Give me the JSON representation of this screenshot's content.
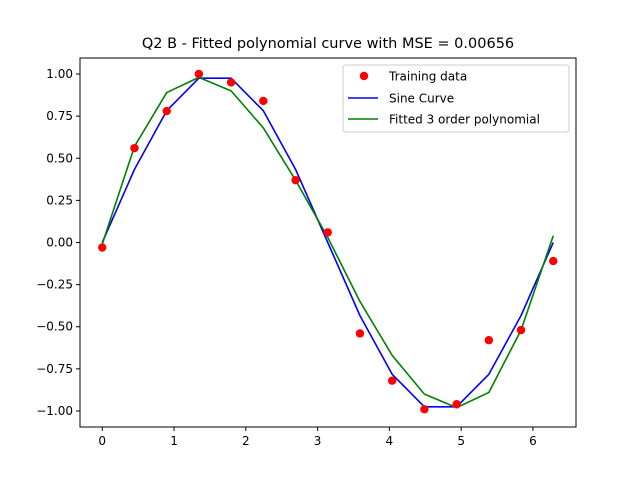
{
  "chart_data": {
    "type": "line",
    "title": "Q2 B - Fitted polynomial curve with MSE = 0.00656",
    "xlabel": "",
    "ylabel": "",
    "xlim": [
      -0.31,
      6.6
    ],
    "ylim": [
      -1.095,
      1.095
    ],
    "xticks": [
      0,
      1,
      2,
      3,
      4,
      5,
      6
    ],
    "xtick_labels": [
      "0",
      "1",
      "2",
      "3",
      "4",
      "5",
      "6"
    ],
    "yticks": [
      -1.0,
      -0.75,
      -0.5,
      -0.25,
      0.0,
      0.25,
      0.5,
      0.75,
      1.0
    ],
    "ytick_labels": [
      "−1.00",
      "−0.75",
      "−0.50",
      "−0.25",
      "0.00",
      "0.25",
      "0.50",
      "0.75",
      "1.00"
    ],
    "grid": false,
    "legend_position": "top-right",
    "x": [
      0.0,
      0.449,
      0.898,
      1.346,
      1.795,
      2.244,
      2.693,
      3.142,
      3.59,
      4.039,
      4.488,
      4.937,
      5.386,
      5.834,
      6.283
    ],
    "series": [
      {
        "name": "Training data",
        "kind": "scatter",
        "color": "#ff0000",
        "values": [
          -0.03,
          0.56,
          0.78,
          1.0,
          0.95,
          0.84,
          0.37,
          0.06,
          -0.54,
          -0.82,
          -0.99,
          -0.96,
          -0.58,
          -0.52,
          -0.11
        ]
      },
      {
        "name": "Sine Curve",
        "kind": "line",
        "color": "#0000ff",
        "values": [
          0.0,
          0.434,
          0.782,
          0.975,
          0.975,
          0.782,
          0.434,
          0.0,
          -0.434,
          -0.782,
          -0.975,
          -0.975,
          -0.782,
          -0.434,
          0.0
        ]
      },
      {
        "name": "Fitted 3 order polynomial",
        "kind": "line",
        "color": "#008000",
        "values": [
          -0.01,
          0.57,
          0.89,
          0.98,
          0.9,
          0.68,
          0.37,
          0.03,
          -0.35,
          -0.67,
          -0.9,
          -0.98,
          -0.89,
          -0.52,
          0.04
        ]
      }
    ]
  }
}
